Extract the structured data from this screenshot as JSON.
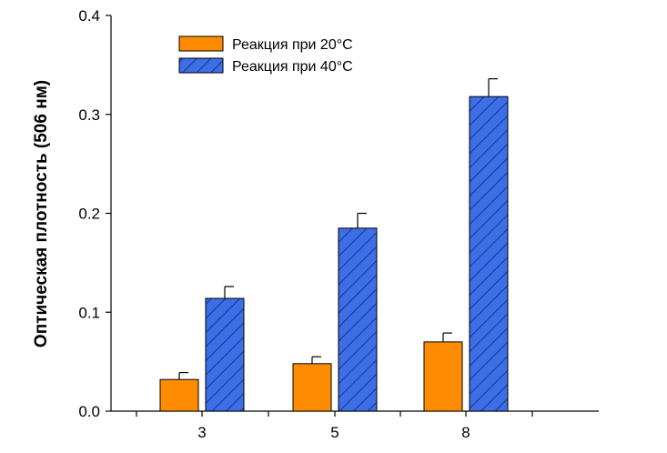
{
  "chart_data": {
    "type": "bar",
    "title": "",
    "xlabel": "",
    "ylabel": "Оптическая плотность (506 нм)",
    "categories": [
      "3",
      "5",
      "8"
    ],
    "ylim": [
      0.0,
      0.4
    ],
    "yticks": [
      "0.0",
      "0.1",
      "0.2",
      "0.3",
      "0.4"
    ],
    "grid": false,
    "legend_position": "top-center",
    "series": [
      {
        "name": "Реакция при 20°C",
        "color": "#ff8c00",
        "pattern": "solid",
        "values": [
          0.032,
          0.048,
          0.07
        ],
        "errors": [
          0.007,
          0.007,
          0.009
        ]
      },
      {
        "name": "Реакция при 40°C",
        "color": "#3c6ee8",
        "pattern": "diagonal-hatch",
        "values": [
          0.114,
          0.185,
          0.318
        ],
        "errors": [
          0.012,
          0.015,
          0.018
        ]
      }
    ]
  }
}
